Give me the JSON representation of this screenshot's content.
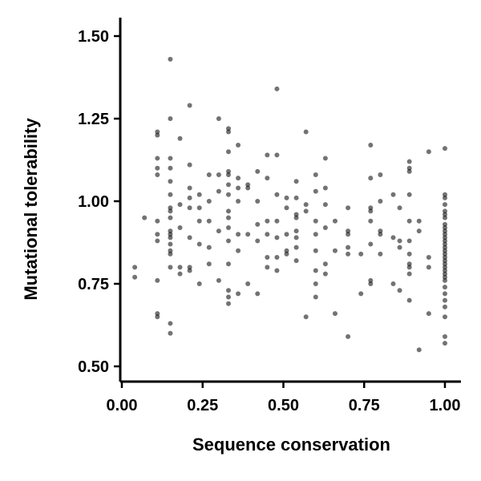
{
  "chart_data": {
    "type": "scatter",
    "title": "",
    "xlabel": "Sequence conservation",
    "ylabel": "Mutational tolerability",
    "xlim": [
      0.0,
      1.05
    ],
    "ylim": [
      0.48,
      1.55
    ],
    "xticks": [
      "0.00",
      "0.25",
      "0.50",
      "0.75",
      "1.00"
    ],
    "xtick_values": [
      0.0,
      0.25,
      0.5,
      0.75,
      1.0
    ],
    "yticks": [
      "0.50",
      "0.75",
      "1.00",
      "1.25",
      "1.50"
    ],
    "ytick_values": [
      0.5,
      0.75,
      1.0,
      1.25,
      1.5
    ],
    "grid": false,
    "legend": "none",
    "point_color": "#000000",
    "point_opacity": 0.55,
    "series": [
      {
        "points": [
          [
            0.04,
            0.8
          ],
          [
            0.04,
            0.77
          ],
          [
            0.07,
            0.95
          ],
          [
            0.11,
            1.21
          ],
          [
            0.11,
            1.2
          ],
          [
            0.11,
            1.13
          ],
          [
            0.11,
            1.1
          ],
          [
            0.11,
            1.08
          ],
          [
            0.11,
            0.94
          ],
          [
            0.11,
            0.9
          ],
          [
            0.11,
            0.88
          ],
          [
            0.11,
            0.76
          ],
          [
            0.11,
            0.66
          ],
          [
            0.11,
            0.65
          ],
          [
            0.15,
            1.43
          ],
          [
            0.15,
            1.25
          ],
          [
            0.15,
            1.13
          ],
          [
            0.15,
            1.1
          ],
          [
            0.15,
            1.06
          ],
          [
            0.15,
            1.02
          ],
          [
            0.15,
            0.98
          ],
          [
            0.15,
            0.97
          ],
          [
            0.15,
            0.95
          ],
          [
            0.15,
            0.91
          ],
          [
            0.15,
            0.9
          ],
          [
            0.15,
            0.89
          ],
          [
            0.15,
            0.87
          ],
          [
            0.15,
            0.85
          ],
          [
            0.15,
            0.84
          ],
          [
            0.15,
            0.8
          ],
          [
            0.15,
            0.63
          ],
          [
            0.15,
            0.6
          ],
          [
            0.18,
            1.19
          ],
          [
            0.18,
            0.99
          ],
          [
            0.18,
            0.92
          ],
          [
            0.18,
            0.8
          ],
          [
            0.18,
            0.78
          ],
          [
            0.21,
            1.29
          ],
          [
            0.21,
            1.11
          ],
          [
            0.21,
            1.04
          ],
          [
            0.21,
            1.01
          ],
          [
            0.21,
            0.98
          ],
          [
            0.21,
            0.89
          ],
          [
            0.21,
            0.8
          ],
          [
            0.21,
            0.79
          ],
          [
            0.24,
            1.02
          ],
          [
            0.24,
            0.98
          ],
          [
            0.24,
            0.94
          ],
          [
            0.24,
            0.87
          ],
          [
            0.24,
            0.75
          ],
          [
            0.27,
            1.08
          ],
          [
            0.27,
            1.0
          ],
          [
            0.27,
            0.94
          ],
          [
            0.27,
            0.86
          ],
          [
            0.27,
            0.81
          ],
          [
            0.3,
            1.25
          ],
          [
            0.3,
            1.08
          ],
          [
            0.3,
            1.03
          ],
          [
            0.3,
            0.91
          ],
          [
            0.3,
            0.76
          ],
          [
            0.33,
            1.22
          ],
          [
            0.33,
            1.21
          ],
          [
            0.33,
            1.15
          ],
          [
            0.33,
            1.09
          ],
          [
            0.33,
            1.08
          ],
          [
            0.33,
            1.05
          ],
          [
            0.33,
            1.02
          ],
          [
            0.33,
            0.97
          ],
          [
            0.33,
            0.95
          ],
          [
            0.33,
            0.92
          ],
          [
            0.33,
            0.88
          ],
          [
            0.33,
            0.81
          ],
          [
            0.33,
            0.73
          ],
          [
            0.33,
            0.71
          ],
          [
            0.33,
            0.69
          ],
          [
            0.36,
            1.17
          ],
          [
            0.36,
            1.07
          ],
          [
            0.36,
            1.04
          ],
          [
            0.36,
            1.0
          ],
          [
            0.36,
            0.9
          ],
          [
            0.36,
            0.85
          ],
          [
            0.36,
            0.72
          ],
          [
            0.39,
            1.05
          ],
          [
            0.39,
            1.04
          ],
          [
            0.39,
            0.9
          ],
          [
            0.39,
            0.75
          ],
          [
            0.42,
            1.09
          ],
          [
            0.42,
            1.0
          ],
          [
            0.42,
            0.93
          ],
          [
            0.42,
            0.88
          ],
          [
            0.42,
            0.72
          ],
          [
            0.45,
            1.14
          ],
          [
            0.45,
            1.07
          ],
          [
            0.45,
            0.94
          ],
          [
            0.45,
            0.9
          ],
          [
            0.45,
            0.83
          ],
          [
            0.45,
            0.8
          ],
          [
            0.48,
            1.34
          ],
          [
            0.48,
            1.14
          ],
          [
            0.48,
            1.02
          ],
          [
            0.48,
            0.94
          ],
          [
            0.48,
            0.89
          ],
          [
            0.48,
            0.83
          ],
          [
            0.48,
            0.79
          ],
          [
            0.51,
            1.01
          ],
          [
            0.51,
            0.98
          ],
          [
            0.51,
            0.9
          ],
          [
            0.51,
            0.85
          ],
          [
            0.51,
            0.84
          ],
          [
            0.54,
            1.06
          ],
          [
            0.54,
            1.01
          ],
          [
            0.54,
            0.96
          ],
          [
            0.54,
            0.95
          ],
          [
            0.54,
            0.91
          ],
          [
            0.54,
            0.89
          ],
          [
            0.54,
            0.86
          ],
          [
            0.54,
            0.82
          ],
          [
            0.57,
            1.21
          ],
          [
            0.57,
            0.99
          ],
          [
            0.57,
            0.97
          ],
          [
            0.57,
            0.65
          ],
          [
            0.6,
            1.08
          ],
          [
            0.6,
            1.03
          ],
          [
            0.6,
            0.94
          ],
          [
            0.6,
            0.9
          ],
          [
            0.6,
            0.85
          ],
          [
            0.6,
            0.79
          ],
          [
            0.6,
            0.75
          ],
          [
            0.6,
            0.71
          ],
          [
            0.63,
            1.13
          ],
          [
            0.63,
            1.04
          ],
          [
            0.63,
            0.99
          ],
          [
            0.63,
            0.92
          ],
          [
            0.63,
            0.81
          ],
          [
            0.63,
            0.78
          ],
          [
            0.66,
            0.94
          ],
          [
            0.66,
            0.85
          ],
          [
            0.66,
            0.66
          ],
          [
            0.7,
            0.98
          ],
          [
            0.7,
            0.91
          ],
          [
            0.7,
            0.9
          ],
          [
            0.7,
            0.86
          ],
          [
            0.7,
            0.84
          ],
          [
            0.7,
            0.59
          ],
          [
            0.74,
            0.84
          ],
          [
            0.74,
            0.72
          ],
          [
            0.77,
            1.17
          ],
          [
            0.77,
            1.07
          ],
          [
            0.77,
            0.98
          ],
          [
            0.77,
            0.97
          ],
          [
            0.77,
            0.94
          ],
          [
            0.77,
            0.87
          ],
          [
            0.77,
            0.76
          ],
          [
            0.77,
            0.75
          ],
          [
            0.8,
            1.08
          ],
          [
            0.8,
            1.0
          ],
          [
            0.8,
            0.91
          ],
          [
            0.8,
            0.9
          ],
          [
            0.8,
            0.84
          ],
          [
            0.84,
            1.02
          ],
          [
            0.84,
            0.89
          ],
          [
            0.84,
            0.75
          ],
          [
            0.86,
            0.98
          ],
          [
            0.86,
            0.88
          ],
          [
            0.86,
            0.86
          ],
          [
            0.86,
            0.73
          ],
          [
            0.89,
            1.12
          ],
          [
            0.89,
            1.1
          ],
          [
            0.89,
            1.09
          ],
          [
            0.89,
            1.02
          ],
          [
            0.89,
            0.94
          ],
          [
            0.89,
            0.88
          ],
          [
            0.89,
            0.84
          ],
          [
            0.89,
            0.81
          ],
          [
            0.89,
            0.8
          ],
          [
            0.89,
            0.78
          ],
          [
            0.89,
            0.7
          ],
          [
            0.92,
            0.94
          ],
          [
            0.92,
            0.91
          ],
          [
            0.92,
            0.55
          ],
          [
            0.95,
            1.15
          ],
          [
            0.95,
            0.83
          ],
          [
            0.95,
            0.8
          ],
          [
            0.95,
            0.66
          ],
          [
            1.0,
            1.16
          ],
          [
            1.0,
            1.02
          ],
          [
            1.0,
            1.01
          ],
          [
            1.0,
            0.99
          ],
          [
            1.0,
            0.97
          ],
          [
            1.0,
            0.96
          ],
          [
            1.0,
            0.95
          ],
          [
            1.0,
            0.93
          ],
          [
            1.0,
            0.92
          ],
          [
            1.0,
            0.91
          ],
          [
            1.0,
            0.9
          ],
          [
            1.0,
            0.89
          ],
          [
            1.0,
            0.88
          ],
          [
            1.0,
            0.87
          ],
          [
            1.0,
            0.86
          ],
          [
            1.0,
            0.85
          ],
          [
            1.0,
            0.84
          ],
          [
            1.0,
            0.83
          ],
          [
            1.0,
            0.82
          ],
          [
            1.0,
            0.81
          ],
          [
            1.0,
            0.8
          ],
          [
            1.0,
            0.79
          ],
          [
            1.0,
            0.78
          ],
          [
            1.0,
            0.77
          ],
          [
            1.0,
            0.76
          ],
          [
            1.0,
            0.74
          ],
          [
            1.0,
            0.72
          ],
          [
            1.0,
            0.7
          ],
          [
            1.0,
            0.68
          ],
          [
            1.0,
            0.65
          ],
          [
            1.0,
            0.59
          ],
          [
            1.0,
            0.57
          ]
        ]
      }
    ]
  }
}
